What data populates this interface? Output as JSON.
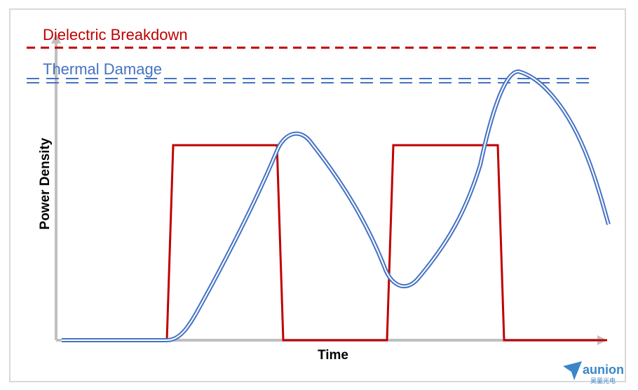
{
  "labels": {
    "dielectric_breakdown": "Dielectric Breakdown",
    "thermal_damage": "Thermal Damage",
    "y_axis": "Power Density",
    "x_axis": "Time"
  },
  "logo": {
    "name": "aunion",
    "sub": "昊量光电"
  },
  "colors": {
    "red": "#c00000",
    "blue": "#4472c4",
    "axis": "#bfbfbf",
    "border": "#d9d9d9"
  }
}
